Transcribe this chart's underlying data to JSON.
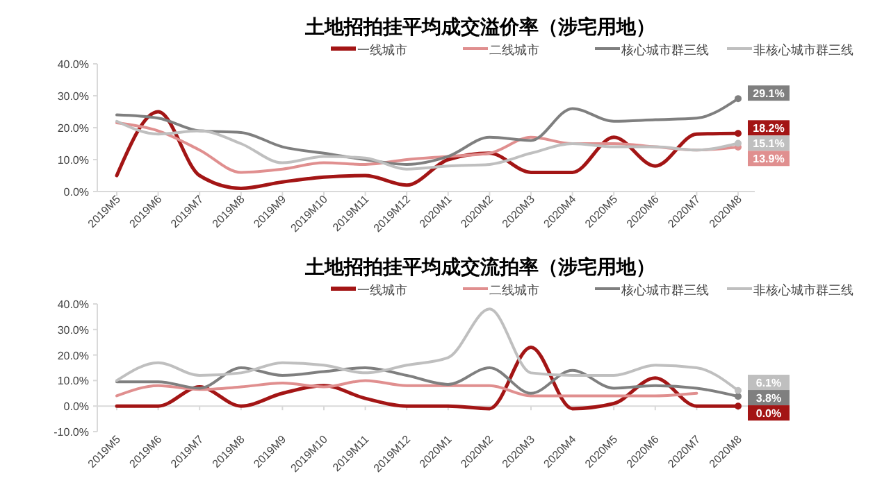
{
  "chart_data": [
    {
      "type": "line",
      "title": "土地招拍挂平均成交溢价率（涉宅用地）",
      "categories": [
        "2019M5",
        "2019M6",
        "2019M7",
        "2019M8",
        "2019M9",
        "2019M10",
        "2019M11",
        "2019M12",
        "2020M1",
        "2020M2",
        "2020M3",
        "2020M4",
        "2020M5",
        "2020M6",
        "2020M7",
        "2020M8"
      ],
      "series": [
        {
          "name": "一线城市",
          "color": "#a31515",
          "values": [
            5,
            25,
            5,
            1,
            3,
            4.5,
            5,
            2,
            10,
            12,
            6,
            6,
            17,
            8,
            18,
            18.2
          ],
          "value_labels": [
            null,
            null,
            null,
            null,
            null,
            null,
            null,
            null,
            null,
            null,
            null,
            null,
            null,
            null,
            null,
            "18.2%"
          ]
        },
        {
          "name": "二线城市",
          "color": "#e08f8f",
          "values": [
            21.5,
            19,
            13,
            6,
            7,
            9,
            8.5,
            10,
            11,
            12,
            17,
            15,
            15,
            14,
            13,
            13.9
          ],
          "value_labels": [
            null,
            null,
            null,
            null,
            null,
            null,
            null,
            null,
            null,
            null,
            null,
            null,
            null,
            null,
            null,
            "13.9%"
          ]
        },
        {
          "name": "核心城市群三线",
          "color": "#7f7f7f",
          "values": [
            24,
            23,
            19,
            18.5,
            14,
            12,
            10,
            8.5,
            11,
            17,
            16,
            26,
            22,
            22.5,
            23,
            29.1
          ],
          "value_labels": [
            null,
            null,
            null,
            null,
            null,
            null,
            null,
            null,
            null,
            null,
            null,
            null,
            null,
            null,
            null,
            "29.1%"
          ]
        },
        {
          "name": "非核心城市群三线",
          "color": "#bfbfbf",
          "values": [
            22,
            18,
            19,
            15,
            9,
            11,
            10.5,
            7,
            8,
            8.5,
            12,
            15,
            14,
            14,
            13,
            15.1
          ],
          "value_labels": [
            null,
            null,
            null,
            null,
            null,
            null,
            null,
            null,
            null,
            null,
            null,
            null,
            null,
            null,
            null,
            "15.1%"
          ]
        }
      ],
      "ylim": [
        0,
        40
      ],
      "yticks": [
        {
          "value": 0,
          "label": "0.0%"
        },
        {
          "value": 10,
          "label": "10.0%"
        },
        {
          "value": 20,
          "label": "20.0%"
        },
        {
          "value": 30,
          "label": "30.0%"
        },
        {
          "value": 40,
          "label": "40.0%"
        }
      ],
      "grid": false,
      "legend": "top",
      "marker": "none",
      "line_style": "solid"
    },
    {
      "type": "line",
      "title": "土地招拍挂平均成交流拍率（涉宅用地）",
      "categories": [
        "2019M5",
        "2019M6",
        "2019M7",
        "2019M8",
        "2019M9",
        "2019M10",
        "2019M11",
        "2019M12",
        "2020M1",
        "2020M2",
        "2020M3",
        "2020M4",
        "2020M5",
        "2020M6",
        "2020M7",
        "2020M8"
      ],
      "series": [
        {
          "name": "一线城市",
          "color": "#a31515",
          "values": [
            0,
            0,
            7.5,
            0,
            5,
            8,
            3,
            0,
            0,
            -1,
            23,
            -1,
            1,
            11,
            0,
            0.0
          ],
          "value_labels": [
            null,
            null,
            null,
            null,
            null,
            null,
            null,
            null,
            null,
            null,
            null,
            null,
            null,
            null,
            null,
            "0.0%"
          ]
        },
        {
          "name": "二线城市",
          "color": "#e08f8f",
          "values": [
            4,
            8,
            6.5,
            7.5,
            9,
            7.5,
            10,
            8,
            8,
            8,
            4,
            4,
            4,
            4,
            5,
            null
          ]
        },
        {
          "name": "核心城市群三线",
          "color": "#7f7f7f",
          "values": [
            9.5,
            9.5,
            7,
            15,
            12,
            13.5,
            15,
            12,
            8.5,
            15,
            5,
            14,
            7,
            8,
            7,
            3.8
          ],
          "value_labels": [
            null,
            null,
            null,
            null,
            null,
            null,
            null,
            null,
            null,
            null,
            null,
            null,
            null,
            null,
            null,
            "3.8%"
          ]
        },
        {
          "name": "非核心城市群三线",
          "color": "#bfbfbf",
          "values": [
            10,
            17,
            12,
            13,
            17,
            16,
            13,
            16,
            19,
            38,
            13,
            12,
            12,
            16,
            15,
            6.1
          ],
          "value_labels": [
            null,
            null,
            null,
            null,
            null,
            null,
            null,
            null,
            null,
            null,
            null,
            null,
            null,
            null,
            null,
            "6.1%"
          ]
        }
      ],
      "ylim": [
        -10,
        40
      ],
      "yticks": [
        {
          "value": -10,
          "label": "-10.0%"
        },
        {
          "value": 0,
          "label": "0.0%"
        },
        {
          "value": 10,
          "label": "10.0%"
        },
        {
          "value": 20,
          "label": "20.0%"
        },
        {
          "value": 30,
          "label": "30.0%"
        },
        {
          "value": 40,
          "label": "40.0%"
        }
      ],
      "grid": false,
      "legend": "top",
      "marker": "none",
      "line_style": "solid"
    }
  ]
}
